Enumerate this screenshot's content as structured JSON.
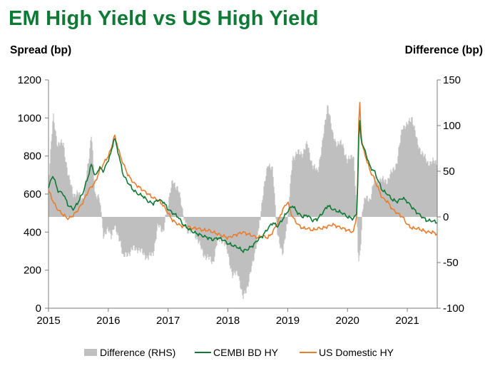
{
  "title": "EM High Yield vs US High Yield",
  "chart_data": {
    "type": "line",
    "title": "EM High Yield vs US High Yield",
    "ylabel": "Spread (bp)",
    "ylabel_right": "Difference (bp)",
    "xlabel": "",
    "xlim": [
      2015.0,
      2021.5
    ],
    "ylim": [
      0,
      1200
    ],
    "ylim_right": [
      -100,
      150
    ],
    "x_ticks": [
      "2015",
      "2016",
      "2017",
      "2018",
      "2019",
      "2020",
      "2021"
    ],
    "y_ticks": [
      "0",
      "200",
      "400",
      "600",
      "800",
      "1000",
      "1200"
    ],
    "y_ticks_right": [
      "-100",
      "-50",
      "0",
      "50",
      "100",
      "150"
    ],
    "colors": {
      "difference": "#bfbfbf",
      "cembi": "#0f7a35",
      "us": "#ea7d2e"
    },
    "series": [
      {
        "name": "CEMBI BD HY",
        "axis": "left",
        "x": [
          2015.0,
          2015.08,
          2015.15,
          2015.25,
          2015.33,
          2015.42,
          2015.5,
          2015.58,
          2015.67,
          2015.72,
          2015.78,
          2015.85,
          2015.92,
          2016.0,
          2016.05,
          2016.1,
          2016.15,
          2016.2,
          2016.25,
          2016.33,
          2016.42,
          2016.5,
          2016.58,
          2016.67,
          2016.75,
          2016.83,
          2016.92,
          2017.0,
          2017.08,
          2017.17,
          2017.25,
          2017.33,
          2017.42,
          2017.5,
          2017.58,
          2017.67,
          2017.75,
          2017.83,
          2017.92,
          2018.0,
          2018.08,
          2018.17,
          2018.25,
          2018.33,
          2018.42,
          2018.5,
          2018.58,
          2018.67,
          2018.75,
          2018.83,
          2018.92,
          2019.0,
          2019.08,
          2019.17,
          2019.25,
          2019.33,
          2019.42,
          2019.5,
          2019.58,
          2019.67,
          2019.75,
          2019.83,
          2019.92,
          2020.0,
          2020.1,
          2020.16,
          2020.18,
          2020.2,
          2020.22,
          2020.25,
          2020.3,
          2020.38,
          2020.45,
          2020.5,
          2020.58,
          2020.67,
          2020.75,
          2020.83,
          2020.92,
          2021.0,
          2021.08,
          2021.17,
          2021.25,
          2021.33,
          2021.42,
          2021.5
        ],
        "values": [
          640,
          700,
          620,
          600,
          540,
          520,
          560,
          610,
          700,
          760,
          690,
          740,
          720,
          780,
          820,
          900,
          840,
          770,
          700,
          660,
          620,
          600,
          590,
          560,
          550,
          570,
          560,
          520,
          500,
          480,
          440,
          420,
          400,
          390,
          380,
          370,
          360,
          370,
          360,
          340,
          330,
          320,
          300,
          310,
          330,
          360,
          380,
          420,
          450,
          430,
          470,
          510,
          540,
          500,
          480,
          490,
          460,
          470,
          500,
          540,
          520,
          510,
          500,
          480,
          470,
          500,
          800,
          1020,
          900,
          860,
          820,
          740,
          720,
          680,
          620,
          600,
          570,
          560,
          580,
          560,
          530,
          500,
          480,
          460,
          460,
          450
        ]
      },
      {
        "name": "US Domestic HY",
        "axis": "left",
        "x": [
          2015.0,
          2015.08,
          2015.15,
          2015.25,
          2015.33,
          2015.42,
          2015.5,
          2015.58,
          2015.67,
          2015.72,
          2015.78,
          2015.85,
          2015.92,
          2016.0,
          2016.05,
          2016.1,
          2016.15,
          2016.2,
          2016.25,
          2016.33,
          2016.42,
          2016.5,
          2016.58,
          2016.67,
          2016.75,
          2016.83,
          2016.92,
          2017.0,
          2017.08,
          2017.17,
          2017.25,
          2017.33,
          2017.42,
          2017.5,
          2017.58,
          2017.67,
          2017.75,
          2017.83,
          2017.92,
          2018.0,
          2018.08,
          2018.17,
          2018.25,
          2018.33,
          2018.42,
          2018.5,
          2018.58,
          2018.67,
          2018.75,
          2018.83,
          2018.92,
          2019.0,
          2019.08,
          2019.17,
          2019.25,
          2019.33,
          2019.42,
          2019.5,
          2019.58,
          2019.67,
          2019.75,
          2019.83,
          2019.92,
          2020.0,
          2020.1,
          2020.16,
          2020.18,
          2020.2,
          2020.22,
          2020.25,
          2020.3,
          2020.38,
          2020.45,
          2020.5,
          2020.58,
          2020.67,
          2020.75,
          2020.83,
          2020.92,
          2021.0,
          2021.08,
          2021.17,
          2021.25,
          2021.33,
          2021.42,
          2021.5
        ],
        "values": [
          620,
          560,
          520,
          490,
          470,
          490,
          520,
          560,
          620,
          640,
          660,
          720,
          760,
          800,
          840,
          910,
          860,
          800,
          760,
          700,
          660,
          640,
          620,
          600,
          580,
          570,
          540,
          500,
          460,
          440,
          430,
          430,
          420,
          420,
          410,
          410,
          400,
          390,
          380,
          370,
          380,
          390,
          400,
          390,
          380,
          370,
          380,
          370,
          400,
          450,
          520,
          560,
          480,
          440,
          420,
          420,
          410,
          420,
          420,
          430,
          440,
          430,
          420,
          410,
          400,
          500,
          850,
          1140,
          950,
          850,
          800,
          720,
          680,
          640,
          580,
          560,
          520,
          500,
          480,
          440,
          420,
          420,
          410,
          400,
          400,
          390
        ]
      },
      {
        "name": "Difference (RHS)",
        "axis": "right",
        "type": "area",
        "x": [
          2015.0,
          2015.08,
          2015.15,
          2015.25,
          2015.33,
          2015.42,
          2015.5,
          2015.58,
          2015.67,
          2015.72,
          2015.78,
          2015.85,
          2015.92,
          2016.0,
          2016.05,
          2016.1,
          2016.15,
          2016.2,
          2016.25,
          2016.33,
          2016.42,
          2016.5,
          2016.58,
          2016.67,
          2016.75,
          2016.83,
          2016.92,
          2017.0,
          2017.08,
          2017.17,
          2017.25,
          2017.33,
          2017.42,
          2017.5,
          2017.58,
          2017.67,
          2017.75,
          2017.83,
          2017.92,
          2018.0,
          2018.08,
          2018.17,
          2018.25,
          2018.33,
          2018.42,
          2018.5,
          2018.58,
          2018.67,
          2018.75,
          2018.83,
          2018.92,
          2019.0,
          2019.08,
          2019.17,
          2019.25,
          2019.33,
          2019.42,
          2019.5,
          2019.58,
          2019.67,
          2019.75,
          2019.83,
          2019.92,
          2020.0,
          2020.1,
          2020.16,
          2020.18,
          2020.2,
          2020.22,
          2020.25,
          2020.3,
          2020.38,
          2020.45,
          2020.5,
          2020.58,
          2020.67,
          2020.75,
          2020.83,
          2020.92,
          2021.0,
          2021.08,
          2021.17,
          2021.25,
          2021.33,
          2021.42,
          2021.5
        ],
        "values": [
          40,
          110,
          80,
          80,
          45,
          25,
          25,
          20,
          60,
          95,
          20,
          25,
          -20,
          -15,
          -20,
          -10,
          -20,
          -25,
          -45,
          -40,
          -35,
          -35,
          -40,
          -45,
          -40,
          -10,
          -15,
          15,
          40,
          30,
          5,
          -15,
          -15,
          -25,
          -40,
          -45,
          -50,
          -25,
          -25,
          -40,
          -65,
          -60,
          -90,
          -75,
          -50,
          -20,
          20,
          60,
          50,
          -20,
          -40,
          -5,
          65,
          70,
          70,
          80,
          55,
          50,
          80,
          125,
          90,
          80,
          80,
          60,
          70,
          0,
          -50,
          -40,
          -40,
          10,
          20,
          20,
          40,
          40,
          40,
          40,
          50,
          60,
          100,
          100,
          110,
          80,
          70,
          60,
          60,
          60
        ]
      }
    ],
    "legend": [
      "Difference (RHS)",
      "CEMBI BD HY",
      "US Domestic HY"
    ],
    "legend_position": "bottom"
  }
}
